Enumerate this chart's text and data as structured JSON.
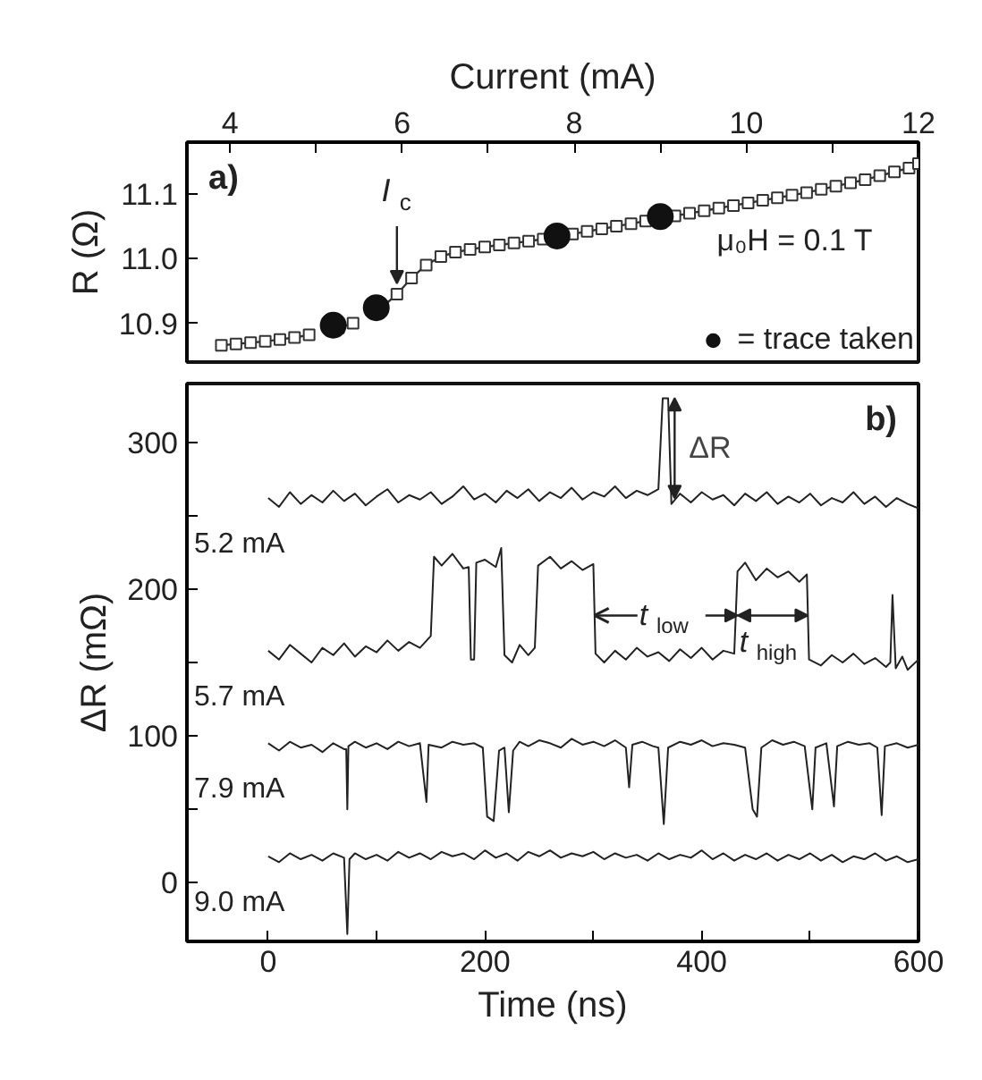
{
  "chart_data": [
    {
      "type": "line",
      "title": "a)",
      "xlabel": "Current (mA)",
      "ylabel": "R (Ω)",
      "xlim": [
        3.5,
        12
      ],
      "ylim": [
        10.84,
        11.18
      ],
      "xticks": [
        4,
        {
          "value": 5,
          "label": null
        },
        6,
        {
          "value": 7,
          "label": null
        },
        8,
        {
          "value": 9,
          "label": null
        },
        10,
        {
          "value": 11,
          "label": null
        },
        12
      ],
      "yticks": [
        10.9,
        {
          "value": 11.0,
          "label": "11.0"
        },
        11.1
      ],
      "legend": "bottom right",
      "annotations": [
        "μ₀H = 0.1 T",
        {
          "text": "I$_{c}$",
          "x": 5.94,
          "y": 10.945
        }
      ],
      "series": [
        {
          "type": "line",
          "marker": "square",
          "color": "#333333",
          "x": [
            3.9,
            4.07,
            4.24,
            4.41,
            4.58,
            4.75,
            4.92,
            5.09,
            5.26,
            5.43,
            5.6,
            5.77,
            5.94,
            6.11,
            6.28,
            6.45,
            6.62,
            6.79,
            6.96,
            7.13,
            7.3,
            7.47,
            7.64,
            7.81,
            7.98,
            8.15,
            8.32,
            8.49,
            8.66,
            8.83,
            9.0,
            9.17,
            9.34,
            9.51,
            9.68,
            9.85,
            10.02,
            10.19,
            10.36,
            10.53,
            10.7,
            10.87,
            11.04,
            11.21,
            11.38,
            11.55,
            11.72,
            11.89,
            12.0
          ],
          "values": [
            10.866,
            10.868,
            10.87,
            10.872,
            10.875,
            10.878,
            10.882,
            null,
            10.893,
            10.9,
            null,
            10.925,
            10.945,
            10.97,
            10.99,
            11.003,
            11.01,
            11.014,
            11.018,
            11.021,
            11.024,
            11.027,
            11.03,
            11.034,
            11.038,
            11.042,
            11.046,
            11.05,
            11.054,
            11.058,
            11.062,
            11.066,
            11.07,
            11.074,
            11.078,
            11.082,
            11.086,
            11.09,
            11.094,
            11.098,
            11.102,
            11.107,
            11.112,
            11.117,
            11.122,
            11.128,
            11.134,
            11.14,
            11.147
          ]
        },
        {
          "type": "scatter",
          "marker": "circle",
          "name": "= trace taken",
          "color": "#111111",
          "x": [
            5.2,
            5.7,
            7.8,
            9.0
          ],
          "values": [
            10.897,
            10.924,
            11.035,
            11.065
          ]
        }
      ]
    },
    {
      "type": "line",
      "title": "b)",
      "xlabel": "Time (ns)",
      "ylabel": "ΔR (mΩ)",
      "xlim": [
        -75,
        600
      ],
      "ylim": [
        -40,
        340
      ],
      "xticks": [
        0,
        {
          "value": 100,
          "label": null
        },
        200,
        {
          "value": 300,
          "label": null
        },
        400,
        {
          "value": 500,
          "label": null
        },
        600
      ],
      "yticks": [
        0,
        {
          "value": 50,
          "label": null
        },
        100,
        {
          "value": 150,
          "label": null
        },
        200,
        {
          "value": 250,
          "label": null
        },
        300
      ],
      "annotations": [
        {
          "text": "ΔR",
          "x": 375,
          "y": 296
        },
        {
          "text": "t$_{low}$",
          "x": 301,
          "y": 182
        },
        {
          "text": "t$_{high}$",
          "x": 498,
          "y": 182
        }
      ],
      "series": [
        {
          "name": "5.2 mA",
          "color": "#222222",
          "x": [
            0,
            10,
            20,
            30,
            40,
            50,
            60,
            70,
            80,
            90,
            100,
            110,
            120,
            130,
            140,
            150,
            160,
            170,
            180,
            190,
            200,
            210,
            220,
            230,
            240,
            250,
            260,
            270,
            280,
            290,
            300,
            310,
            320,
            330,
            340,
            350,
            360,
            364,
            369,
            372,
            380,
            390,
            400,
            410,
            420,
            430,
            440,
            450,
            460,
            470,
            480,
            490,
            500,
            510,
            520,
            530,
            540,
            550,
            560,
            570,
            580,
            590,
            600
          ],
          "values": [
            262,
            256,
            266,
            258,
            264,
            259,
            267,
            260,
            265,
            257,
            263,
            268,
            259,
            264,
            261,
            266,
            258,
            263,
            270,
            261,
            265,
            259,
            267,
            262,
            268,
            260,
            266,
            262,
            269,
            261,
            266,
            263,
            270,
            262,
            267,
            264,
            268,
            330,
            330,
            258,
            265,
            259,
            266,
            261,
            264,
            257,
            265,
            260,
            266,
            258,
            263,
            259,
            265,
            257,
            262,
            259,
            266,
            258,
            263,
            256,
            262,
            258,
            255
          ]
        },
        {
          "name": "5.7 mA",
          "color": "#222222",
          "x": [
            0,
            10,
            20,
            30,
            40,
            50,
            60,
            70,
            80,
            90,
            100,
            110,
            120,
            130,
            140,
            150,
            153,
            160,
            170,
            180,
            185,
            187,
            190,
            192,
            200,
            210,
            215,
            218,
            225,
            232,
            240,
            246,
            249,
            260,
            270,
            280,
            290,
            300,
            302,
            310,
            320,
            330,
            340,
            350,
            360,
            370,
            380,
            390,
            400,
            410,
            420,
            430,
            433,
            440,
            450,
            460,
            470,
            480,
            490,
            497,
            499,
            510,
            520,
            530,
            540,
            550,
            560,
            570,
            574,
            576,
            579,
            585,
            590,
            600
          ],
          "values": [
            158,
            152,
            162,
            156,
            150,
            160,
            155,
            163,
            154,
            161,
            157,
            165,
            158,
            164,
            160,
            168,
            222,
            216,
            224,
            214,
            215,
            152,
            152,
            218,
            220,
            215,
            228,
            155,
            150,
            162,
            155,
            160,
            216,
            222,
            214,
            219,
            213,
            217,
            156,
            150,
            158,
            152,
            160,
            154,
            157,
            151,
            159,
            153,
            160,
            152,
            158,
            156,
            212,
            218,
            206,
            214,
            208,
            212,
            205,
            210,
            152,
            148,
            155,
            150,
            156,
            149,
            153,
            147,
            150,
            196,
            146,
            154,
            145,
            152
          ]
        },
        {
          "name": "7.9 mA",
          "color": "#222222",
          "x": [
            0,
            10,
            20,
            30,
            40,
            50,
            60,
            70,
            72,
            73,
            74,
            80,
            90,
            100,
            110,
            120,
            130,
            140,
            146,
            148,
            160,
            170,
            180,
            190,
            198,
            202,
            208,
            213,
            218,
            222,
            226,
            232,
            240,
            250,
            260,
            270,
            280,
            290,
            300,
            310,
            320,
            330,
            333,
            336,
            345,
            355,
            360,
            365,
            369,
            380,
            390,
            400,
            410,
            420,
            430,
            440,
            447,
            451,
            455,
            465,
            475,
            485,
            495,
            502,
            505,
            515,
            522,
            525,
            535,
            545,
            555,
            562,
            566,
            569,
            580,
            590,
            600
          ],
          "values": [
            95,
            90,
            96,
            92,
            94,
            89,
            95,
            91,
            91,
            50,
            93,
            96,
            92,
            95,
            91,
            96,
            93,
            95,
            55,
            94,
            92,
            96,
            94,
            95,
            92,
            45,
            42,
            90,
            92,
            48,
            90,
            96,
            93,
            97,
            95,
            92,
            98,
            94,
            96,
            93,
            97,
            92,
            65,
            94,
            96,
            93,
            92,
            40,
            92,
            96,
            94,
            97,
            93,
            95,
            94,
            92,
            50,
            45,
            92,
            97,
            94,
            96,
            93,
            50,
            92,
            95,
            52,
            93,
            96,
            94,
            95,
            92,
            46,
            93,
            95,
            92,
            94
          ]
        },
        {
          "name": "9.0 mA",
          "color": "#222222",
          "x": [
            0,
            10,
            20,
            30,
            40,
            50,
            60,
            70,
            73,
            75,
            80,
            90,
            100,
            110,
            120,
            130,
            140,
            150,
            160,
            170,
            180,
            190,
            200,
            210,
            220,
            230,
            240,
            250,
            260,
            270,
            280,
            290,
            300,
            310,
            320,
            330,
            340,
            350,
            360,
            370,
            380,
            390,
            400,
            410,
            420,
            430,
            440,
            450,
            460,
            470,
            480,
            490,
            500,
            510,
            520,
            530,
            540,
            550,
            560,
            570,
            580,
            590,
            600
          ],
          "values": [
            18,
            14,
            20,
            16,
            19,
            15,
            20,
            17,
            -35,
            16,
            20,
            16,
            19,
            15,
            21,
            17,
            20,
            16,
            21,
            18,
            20,
            16,
            22,
            17,
            20,
            15,
            21,
            18,
            22,
            17,
            20,
            18,
            21,
            16,
            20,
            17,
            19,
            15,
            20,
            16,
            19,
            17,
            22,
            16,
            20,
            15,
            19,
            16,
            20,
            15,
            19,
            16,
            20,
            15,
            19,
            14,
            18,
            16,
            20,
            15,
            18,
            14,
            16
          ]
        }
      ]
    }
  ]
}
